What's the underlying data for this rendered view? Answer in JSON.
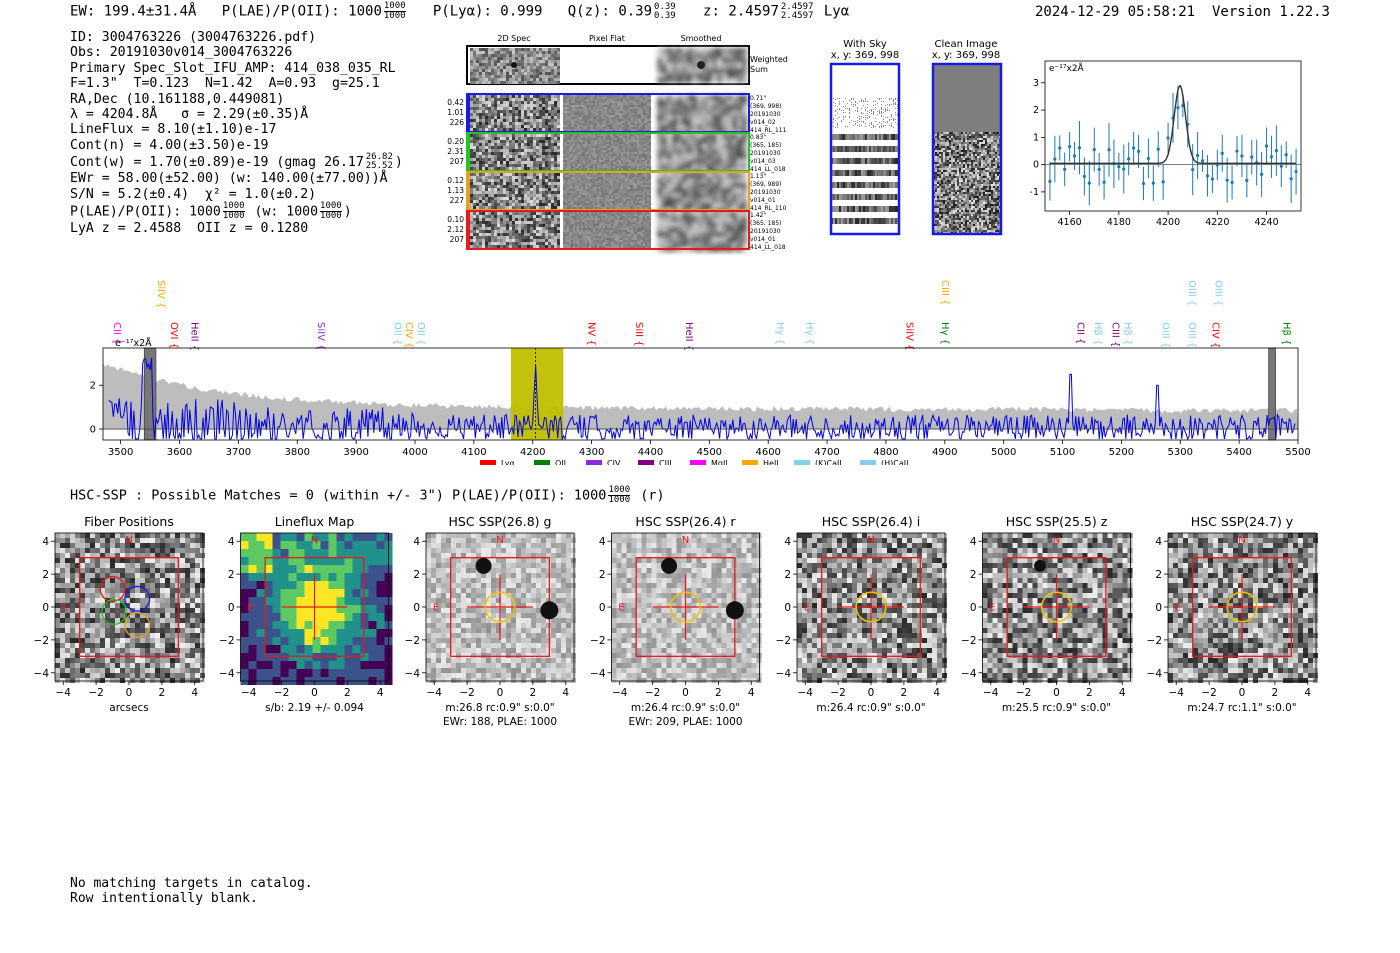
{
  "header": {
    "ew_label": "EW: 199.4±31.4Å",
    "plae_label": "P(LAE)/P(OII): 1000",
    "plae_hi": "1000",
    "plae_lo": "1000",
    "plya_label": "P(Lyα): 0.999",
    "qz_label": "Q(z): 0.39",
    "qz_hi": "0.39",
    "qz_lo": "0.39",
    "z_label": "z: 2.4597",
    "z_hi": "2.4597",
    "z_lo": "2.4597",
    "z_line": "Lyα",
    "timestamp": "2024-12-29 05:58:21",
    "version": "Version 1.22.3"
  },
  "info": {
    "id": "ID: 3004763226 (3004763226.pdf)",
    "obs": "Obs: 20191030v014_3004763226",
    "primary": "Primary Spec_Slot_IFU_AMP: 414_038_035_RL",
    "params": "F=1.3\"  T=0.123  N=1.42  A=0.93  g=25.1",
    "radec": "RA,Dec (10.161188,0.449081)",
    "lambda": "λ = 4204.8Å   σ = 2.29(±0.35)Å",
    "lineflux": "LineFlux = 8.10(±1.10)e-17",
    "contn": "Cont(n) = 4.00(±3.50)e-19",
    "contw": "Cont(w) = 1.70(±0.89)e-19 (gmag 26.17",
    "contw_hi": "26.82",
    "contw_lo": "25.52",
    "contw_end": ")",
    "ewr": "EWr = 58.00(±52.00) (w: 140.00(±77.00))Å",
    "sn": "S/N = 5.2(±0.4)  χ² = 1.0(±0.2)",
    "plae": "P(LAE)/P(OII): 1000",
    "plae_hi": "1000",
    "plae_lo": "1000",
    "plae_w": "(w: 1000",
    "plae_w_hi": "1000",
    "plae_w_lo": "1000",
    "plae_w_end": ")",
    "lya": "LyA z = 2.4588  OII z = 0.1280"
  },
  "cutouts": {
    "col_labels": [
      "2D Spec",
      "Pixel Flat",
      "Smoothed"
    ],
    "weighted_label": "Weighted Sum",
    "rows": [
      {
        "left": [
          "0.42",
          "1.01",
          "226"
        ],
        "right": [
          "0.71\"",
          "(369, 998)",
          "20191030",
          "v014_02",
          "414_RL_111"
        ],
        "color": "#1a1ae6"
      },
      {
        "left": [
          "0.20",
          "2.31",
          "207"
        ],
        "right": [
          "0.83\"",
          "(365, 185)",
          "20191030",
          "v014_03",
          "414_LL_018"
        ],
        "color": "#22c522"
      },
      {
        "left": [
          "0.12",
          "1.13",
          "227"
        ],
        "right": [
          "1.13\"",
          "(369, 989)",
          "20191030",
          "v014_01",
          "414_RL_110"
        ],
        "color": "#e5a020"
      },
      {
        "left": [
          "0.10",
          "2.12",
          "207"
        ],
        "right": [
          "1.42\"",
          "(365, 185)",
          "20191030",
          "v014_01",
          "414_LL_018"
        ],
        "color": "#e51a1a"
      }
    ]
  },
  "sky": {
    "with_sky_title": "With Sky",
    "with_sky_coords": "x, y: 369, 998",
    "clean_title": "Clean Image",
    "clean_coords": "x, y: 369, 998"
  },
  "zoom_chart": {
    "ylabel": "e⁻¹⁷x2Å",
    "xticks": [
      "4160",
      "4180",
      "4200",
      "4220",
      "4240"
    ],
    "yticks": [
      "3",
      "2",
      "1",
      "0",
      "-1"
    ]
  },
  "chart_data": {
    "type": "line",
    "ylabel": "e⁻¹⁷x2Å",
    "xlim": [
      3470,
      5500
    ],
    "ylim": [
      -0.5,
      3.7
    ],
    "xticks": [
      3500,
      3600,
      3700,
      3800,
      3900,
      4000,
      4100,
      4200,
      4300,
      4400,
      4500,
      4600,
      4700,
      4800,
      4900,
      5000,
      5100,
      5200,
      5300,
      5400,
      5500
    ],
    "yticks": [
      0,
      2
    ],
    "highlight_range": [
      4163,
      4252
    ],
    "line_center": 4204.8,
    "legend": [
      {
        "name": "Lyα",
        "color": "#ff0000"
      },
      {
        "name": "OII",
        "color": "#008000"
      },
      {
        "name": "CIV",
        "color": "#8a2be2"
      },
      {
        "name": "CIII",
        "color": "#800080"
      },
      {
        "name": "MgII",
        "color": "#ff00ff"
      },
      {
        "name": "HeII",
        "color": "#ffa500"
      },
      {
        "name": "(K)CaII",
        "color": "#87ceeb"
      },
      {
        "name": "(H)CaII",
        "color": "#87ceeb"
      }
    ],
    "line_labels": [
      {
        "name": "CII",
        "wave": 3462,
        "color": "#ff00ff",
        "tier": 1
      },
      {
        "name": "SiIV",
        "wave": 3558,
        "color": "#ffa500",
        "tier": 0
      },
      {
        "name": "OVI",
        "wave": 3580,
        "color": "#ff0000",
        "tier": 1
      },
      {
        "name": "HeII",
        "wave": 3615,
        "color": "#800080",
        "tier": 1
      },
      {
        "name": "SiIV",
        "wave": 3830,
        "color": "#8a2be2",
        "tier": 1
      },
      {
        "name": "OII",
        "wave": 3960,
        "color": "#87ceeb",
        "tier": 1
      },
      {
        "name": "CIV",
        "wave": 3980,
        "color": "#ffa500",
        "tier": 1
      },
      {
        "name": "OII",
        "wave": 4000,
        "color": "#87ceeb",
        "tier": 1
      },
      {
        "name": "NV",
        "wave": 4290,
        "color": "#ff0000",
        "tier": 1
      },
      {
        "name": "SiII",
        "wave": 4370,
        "color": "#ff0000",
        "tier": 1
      },
      {
        "name": "HeII",
        "wave": 4455,
        "color": "#800080",
        "tier": 1
      },
      {
        "name": "Hγ",
        "wave": 4610,
        "color": "#87ceeb",
        "tier": 1
      },
      {
        "name": "Hγ",
        "wave": 4660,
        "color": "#87ceeb",
        "tier": 1
      },
      {
        "name": "SiIV",
        "wave": 4830,
        "color": "#ff0000",
        "tier": 1
      },
      {
        "name": "CIII",
        "wave": 4890,
        "color": "#ffa500",
        "tier": 0
      },
      {
        "name": "Hγ",
        "wave": 4890,
        "color": "#008000",
        "tier": 1
      },
      {
        "name": "CII",
        "wave": 5120,
        "color": "#800080",
        "tier": 1
      },
      {
        "name": "Hβ",
        "wave": 5150,
        "color": "#87ceeb",
        "tier": 1
      },
      {
        "name": "CIII",
        "wave": 5180,
        "color": "#800080",
        "tier": 1
      },
      {
        "name": "Hβ",
        "wave": 5200,
        "color": "#87ceeb",
        "tier": 1
      },
      {
        "name": "OIII",
        "wave": 5265,
        "color": "#87ceeb",
        "tier": 1
      },
      {
        "name": "OIII",
        "wave": 5310,
        "color": "#87ceeb",
        "tier": 1
      },
      {
        "name": "OIII",
        "wave": 5310,
        "color": "#87ceeb",
        "tier": 0
      },
      {
        "name": "CIV",
        "wave": 5350,
        "color": "#ff0000",
        "tier": 1
      },
      {
        "name": "OIII",
        "wave": 5355,
        "color": "#87ceeb",
        "tier": 0
      },
      {
        "name": "Hβ",
        "wave": 5470,
        "color": "#008000",
        "tier": 1
      }
    ]
  },
  "hsc": {
    "summary": "HSC-SSP : Possible Matches = 0 (within +/- 3\")  P(LAE)/P(OII): 1000",
    "summary_hi": "1000",
    "summary_lo": "1000",
    "summary_end": "(r)",
    "panels": [
      {
        "title": "Fiber Positions",
        "cap1": "arcsecs",
        "cap2": "",
        "kind": "fiber"
      },
      {
        "title": "Lineflux Map",
        "cap1": "s/b: 2.19 +/- 0.094",
        "cap2": "",
        "kind": "flux"
      },
      {
        "title": "HSC SSP(26.8) g",
        "cap1": "m:26.8 rc:0.9\"  s:0.0\"",
        "cap2": "EWr: 188, PLAE: 1000",
        "kind": "g"
      },
      {
        "title": "HSC SSP(26.4) r",
        "cap1": "m:26.4 rc:0.9\"  s:0.0\"",
        "cap2": "EWr: 209, PLAE: 1000",
        "kind": "r"
      },
      {
        "title": "HSC SSP(26.4) i",
        "cap1": "m:26.4 rc:0.9\"  s:0.0\"",
        "cap2": "",
        "kind": "i"
      },
      {
        "title": "HSC SSP(25.5) z",
        "cap1": "m:25.5 rc:0.9\"  s:0.0\"",
        "cap2": "",
        "kind": "z"
      },
      {
        "title": "HSC SSP(24.7) y",
        "cap1": "m:24.7 rc:1.1\"  s:0.0\"",
        "cap2": "",
        "kind": "y"
      }
    ],
    "axis_ticks": [
      "−4",
      "−2",
      "0",
      "2",
      "4"
    ],
    "north": "N",
    "east": "E"
  },
  "footer": {
    "line1": "No matching targets in catalog.",
    "line2": "Row intentionally blank."
  }
}
